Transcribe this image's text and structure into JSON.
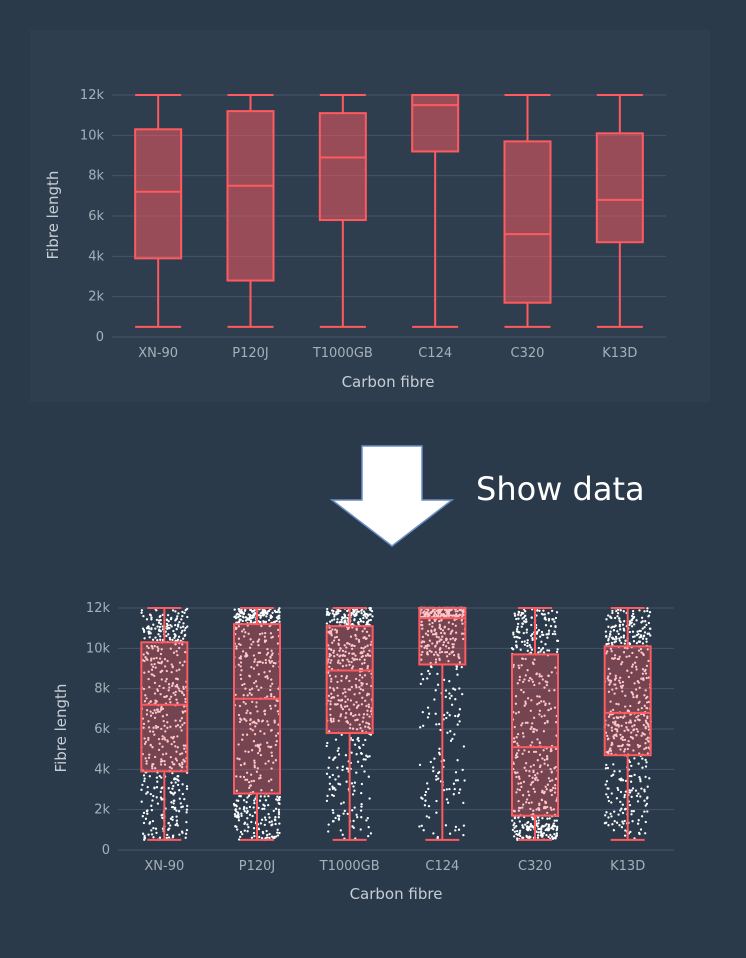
{
  "caption": "Show data",
  "colors": {
    "background": "#2b3a4a",
    "box_line": "#ff5a5f",
    "box_fill": "rgba(255,90,95,0.5)",
    "grid": "#44546a",
    "points": "#ffffff",
    "arrow": "#ffffff"
  },
  "icons": {
    "arrow": "down-arrow-icon"
  },
  "chart_data": [
    {
      "type": "box",
      "show_points": false,
      "xlabel": "Carbon fibre",
      "ylabel": "Fibre length",
      "ylim": [
        0,
        12000
      ],
      "yticks": [
        0,
        2000,
        4000,
        6000,
        8000,
        10000,
        12000
      ],
      "ytick_labels": [
        "0",
        "2k",
        "4k",
        "6k",
        "8k",
        "10k",
        "12k"
      ],
      "grid": true,
      "categories": [
        "XN-90",
        "P120J",
        "T1000GB",
        "C124",
        "C320",
        "K13D"
      ],
      "boxes": [
        {
          "min": 500,
          "q1": 3900,
          "median": 7200,
          "q3": 10300,
          "max": 12000
        },
        {
          "min": 500,
          "q1": 2800,
          "median": 7500,
          "q3": 11200,
          "max": 12000
        },
        {
          "min": 500,
          "q1": 5800,
          "median": 8900,
          "q3": 11100,
          "max": 12000
        },
        {
          "min": 500,
          "q1": 9200,
          "median": 11500,
          "q3": 12000,
          "max": 12000
        },
        {
          "min": 500,
          "q1": 1700,
          "median": 5100,
          "q3": 9700,
          "max": 12000
        },
        {
          "min": 500,
          "q1": 4700,
          "median": 6800,
          "q3": 10100,
          "max": 12000
        }
      ]
    },
    {
      "type": "box",
      "show_points": true,
      "xlabel": "Carbon fibre",
      "ylabel": "Fibre length",
      "ylim": [
        0,
        12000
      ],
      "yticks": [
        0,
        2000,
        4000,
        6000,
        8000,
        10000,
        12000
      ],
      "ytick_labels": [
        "0",
        "2k",
        "4k",
        "6k",
        "8k",
        "10k",
        "12k"
      ],
      "grid": true,
      "categories": [
        "XN-90",
        "P120J",
        "T1000GB",
        "C124",
        "C320",
        "K13D"
      ],
      "boxes": [
        {
          "min": 500,
          "q1": 3900,
          "median": 7200,
          "q3": 10300,
          "max": 12000
        },
        {
          "min": 500,
          "q1": 2800,
          "median": 7500,
          "q3": 11200,
          "max": 12000
        },
        {
          "min": 500,
          "q1": 5800,
          "median": 8900,
          "q3": 11100,
          "max": 12000
        },
        {
          "min": 500,
          "q1": 9200,
          "median": 11500,
          "q3": 12000,
          "max": 12000
        },
        {
          "min": 500,
          "q1": 1700,
          "median": 5100,
          "q3": 9700,
          "max": 12000
        },
        {
          "min": 500,
          "q1": 4700,
          "median": 6800,
          "q3": 10100,
          "max": 12000
        }
      ]
    }
  ]
}
